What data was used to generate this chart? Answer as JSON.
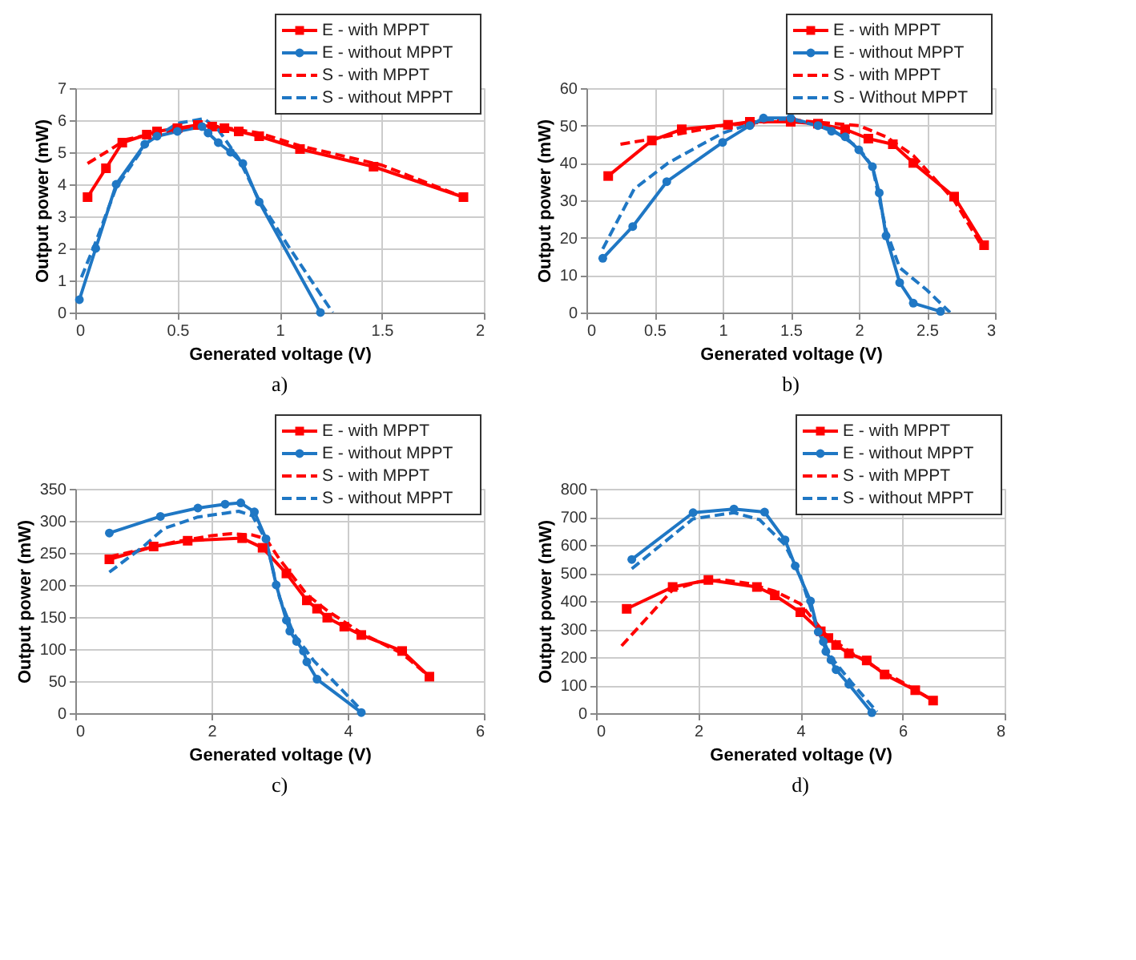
{
  "chart_data": [
    {
      "type": "line",
      "xlabel": "Generated voltage (V)",
      "ylabel": "Output power (mW)",
      "annotations": [
        "a)"
      ],
      "xlim": [
        0,
        2
      ],
      "xticks": [
        0,
        0.5,
        1,
        1.5,
        2
      ],
      "ylim": [
        0,
        7
      ],
      "yticks": [
        0,
        1,
        2,
        3,
        4,
        5,
        6,
        7
      ],
      "grid": true,
      "legend": "top right",
      "series": [
        {
          "name": "E - with MPPT",
          "color": "#ff0000",
          "marker": "square",
          "line_style": "solid",
          "x": [
            0.06,
            0.15,
            0.23,
            0.35,
            0.4,
            0.5,
            0.6,
            0.67,
            0.73,
            0.8,
            0.9,
            1.1,
            1.46,
            1.9
          ],
          "values": [
            3.6,
            4.5,
            5.3,
            5.55,
            5.65,
            5.75,
            5.85,
            5.8,
            5.75,
            5.65,
            5.5,
            5.1,
            4.55,
            3.6
          ]
        },
        {
          "name": "E - without MPPT",
          "color": "#1f77c4",
          "marker": "circle",
          "line_style": "solid",
          "x": [
            0.02,
            0.1,
            0.2,
            0.34,
            0.4,
            0.5,
            0.62,
            0.65,
            0.7,
            0.76,
            0.82,
            0.9,
            1.2
          ],
          "values": [
            0.4,
            2.0,
            4.0,
            5.25,
            5.5,
            5.65,
            5.8,
            5.6,
            5.3,
            5.0,
            4.65,
            3.45,
            0
          ]
        },
        {
          "name": "S - with MPPT",
          "color": "#ff0000",
          "marker": "none",
          "line_style": "dashed",
          "x": [
            0.06,
            0.15,
            0.25,
            0.4,
            0.6,
            0.7,
            0.9,
            1.1,
            1.5,
            1.9
          ],
          "values": [
            4.65,
            5.0,
            5.4,
            5.6,
            5.85,
            5.8,
            5.6,
            5.2,
            4.6,
            3.6
          ]
        },
        {
          "name": "S - without MPPT",
          "color": "#1f77c4",
          "marker": "none",
          "line_style": "dashed",
          "x": [
            0.03,
            0.1,
            0.2,
            0.35,
            0.5,
            0.63,
            0.7,
            0.8,
            0.9,
            1.05,
            1.26
          ],
          "values": [
            1.1,
            2.2,
            3.9,
            5.3,
            5.9,
            6.05,
            5.7,
            4.8,
            3.5,
            2.0,
            0
          ]
        }
      ]
    },
    {
      "type": "line",
      "xlabel": "Generated voltage (V)",
      "ylabel": "Output power (mW)",
      "annotations": [
        "b)"
      ],
      "xlim": [
        0,
        3
      ],
      "xticks": [
        0,
        0.5,
        1,
        1.5,
        2,
        2.5,
        3
      ],
      "ylim": [
        0,
        60
      ],
      "yticks": [
        0,
        10,
        20,
        30,
        40,
        50,
        60
      ],
      "grid": true,
      "legend": "top right",
      "series": [
        {
          "name": "E - with MPPT",
          "color": "#ff0000",
          "marker": "square",
          "line_style": "solid",
          "x": [
            0.16,
            0.48,
            0.7,
            1.04,
            1.2,
            1.5,
            1.7,
            1.9,
            2.07,
            2.25,
            2.4,
            2.7,
            2.92
          ],
          "values": [
            36.5,
            46,
            49,
            50.2,
            51,
            51,
            50.5,
            49,
            46.5,
            45,
            40,
            31,
            18
          ]
        },
        {
          "name": "E - without MPPT",
          "color": "#1f77c4",
          "marker": "circle",
          "line_style": "solid",
          "x": [
            0.12,
            0.34,
            0.59,
            1.0,
            1.2,
            1.3,
            1.5,
            1.7,
            1.8,
            1.9,
            2.0,
            2.1,
            2.15,
            2.2,
            2.3,
            2.4,
            2.6
          ],
          "values": [
            14.5,
            23,
            35,
            45.5,
            50,
            52,
            52,
            50,
            48.5,
            47,
            43.5,
            39,
            32,
            20.5,
            8,
            2.5,
            0.3
          ]
        },
        {
          "name": "S - with MPPT",
          "color": "#ff0000",
          "marker": "none",
          "line_style": "dashed",
          "x": [
            0.25,
            0.5,
            1.0,
            1.5,
            2.0,
            2.2,
            2.4,
            2.7,
            2.9
          ],
          "values": [
            45,
            46.5,
            50,
            51.5,
            50,
            47,
            42,
            30,
            18
          ]
        },
        {
          "name": "S - Without MPPT",
          "color": "#1f77c4",
          "marker": "none",
          "line_style": "dashed",
          "x": [
            0.12,
            0.35,
            0.6,
            1.0,
            1.3,
            1.5,
            1.8,
            2.0,
            2.1,
            2.2,
            2.3,
            2.5,
            2.67
          ],
          "values": [
            17,
            33,
            40,
            48,
            51.5,
            51.8,
            49,
            44,
            39,
            22,
            12,
            6,
            0
          ]
        }
      ]
    },
    {
      "type": "line",
      "xlabel": "Generated voltage (V)",
      "ylabel": "Output power (mW)",
      "annotations": [
        "c)"
      ],
      "xlim": [
        0,
        6
      ],
      "xticks": [
        0,
        2,
        4,
        6
      ],
      "ylim": [
        0,
        350
      ],
      "yticks": [
        0,
        50,
        100,
        150,
        200,
        250,
        300,
        350
      ],
      "grid": true,
      "legend": "top right",
      "series": [
        {
          "name": "E - with MPPT",
          "color": "#ff0000",
          "marker": "square",
          "line_style": "solid",
          "x": [
            0.5,
            1.15,
            1.65,
            2.45,
            2.75,
            3.1,
            3.4,
            3.55,
            3.7,
            3.95,
            4.2,
            4.8,
            5.2
          ],
          "values": [
            240,
            260,
            269,
            273,
            258,
            218,
            176,
            163,
            149,
            135,
            122,
            97,
            57
          ]
        },
        {
          "name": "E - without MPPT",
          "color": "#1f77c4",
          "marker": "circle",
          "line_style": "solid",
          "x": [
            0.5,
            1.25,
            1.8,
            2.2,
            2.43,
            2.63,
            2.8,
            2.95,
            3.1,
            3.15,
            3.25,
            3.35,
            3.4,
            3.55,
            4.2
          ],
          "values": [
            281,
            307,
            320,
            326,
            328,
            314,
            272,
            200,
            145,
            128,
            112,
            97,
            80,
            53,
            1
          ]
        },
        {
          "name": "S - with MPPT",
          "color": "#ff0000",
          "marker": "none",
          "line_style": "dashed",
          "x": [
            0.5,
            1.0,
            1.5,
            2.0,
            2.3,
            2.6,
            2.8,
            3.0,
            3.4,
            3.7,
            4.2,
            4.8,
            5.2
          ],
          "values": [
            244,
            256,
            268,
            277,
            280,
            278,
            272,
            240,
            185,
            160,
            125,
            93,
            57
          ]
        },
        {
          "name": "S - without MPPT",
          "color": "#1f77c4",
          "marker": "none",
          "line_style": "dashed",
          "x": [
            0.5,
            1.0,
            1.3,
            1.8,
            2.2,
            2.4,
            2.6,
            2.8,
            3.0,
            3.2,
            3.5,
            4.2
          ],
          "values": [
            220,
            260,
            288,
            306,
            312,
            315,
            308,
            270,
            180,
            125,
            82,
            5
          ]
        }
      ]
    },
    {
      "type": "line",
      "xlabel": "Generated voltage (V)",
      "ylabel": "Output power (mW)",
      "annotations": [
        "d)"
      ],
      "xlim": [
        0,
        8
      ],
      "xticks": [
        0,
        2,
        4,
        6,
        8
      ],
      "ylim": [
        0,
        800
      ],
      "yticks": [
        0,
        100,
        200,
        300,
        400,
        500,
        600,
        700,
        800
      ],
      "grid": true,
      "legend": "top right",
      "series": [
        {
          "name": "E - with MPPT",
          "color": "#ff0000",
          "marker": "square",
          "line_style": "solid",
          "x": [
            0.6,
            1.5,
            2.2,
            3.15,
            3.5,
            4.0,
            4.4,
            4.55,
            4.7,
            4.95,
            5.3,
            5.65,
            6.25,
            6.6
          ],
          "values": [
            372,
            450,
            475,
            450,
            420,
            360,
            292,
            268,
            243,
            213,
            188,
            138,
            82,
            45
          ]
        },
        {
          "name": "E - without MPPT",
          "color": "#1f77c4",
          "marker": "circle",
          "line_style": "solid",
          "x": [
            0.7,
            1.9,
            2.7,
            3.3,
            3.7,
            3.9,
            4.2,
            4.35,
            4.45,
            4.5,
            4.6,
            4.7,
            4.95,
            5.4
          ],
          "values": [
            548,
            715,
            728,
            717,
            618,
            525,
            400,
            290,
            255,
            220,
            190,
            155,
            103,
            2
          ]
        },
        {
          "name": "S - with MPPT",
          "color": "#ff0000",
          "marker": "none",
          "line_style": "dashed",
          "x": [
            0.5,
            1.0,
            1.5,
            2.0,
            2.5,
            3.0,
            3.5,
            4.0,
            4.5,
            5.0,
            5.5,
            6.0,
            6.6
          ],
          "values": [
            240,
            340,
            440,
            468,
            475,
            462,
            435,
            390,
            280,
            215,
            160,
            110,
            45
          ]
        },
        {
          "name": "S - without MPPT",
          "color": "#1f77c4",
          "marker": "none",
          "line_style": "dashed",
          "x": [
            0.7,
            1.9,
            2.7,
            3.2,
            3.7,
            4.0,
            4.3,
            4.6,
            5.0,
            5.5
          ],
          "values": [
            515,
            693,
            715,
            690,
            600,
            490,
            320,
            200,
            110,
            5
          ]
        }
      ]
    }
  ]
}
